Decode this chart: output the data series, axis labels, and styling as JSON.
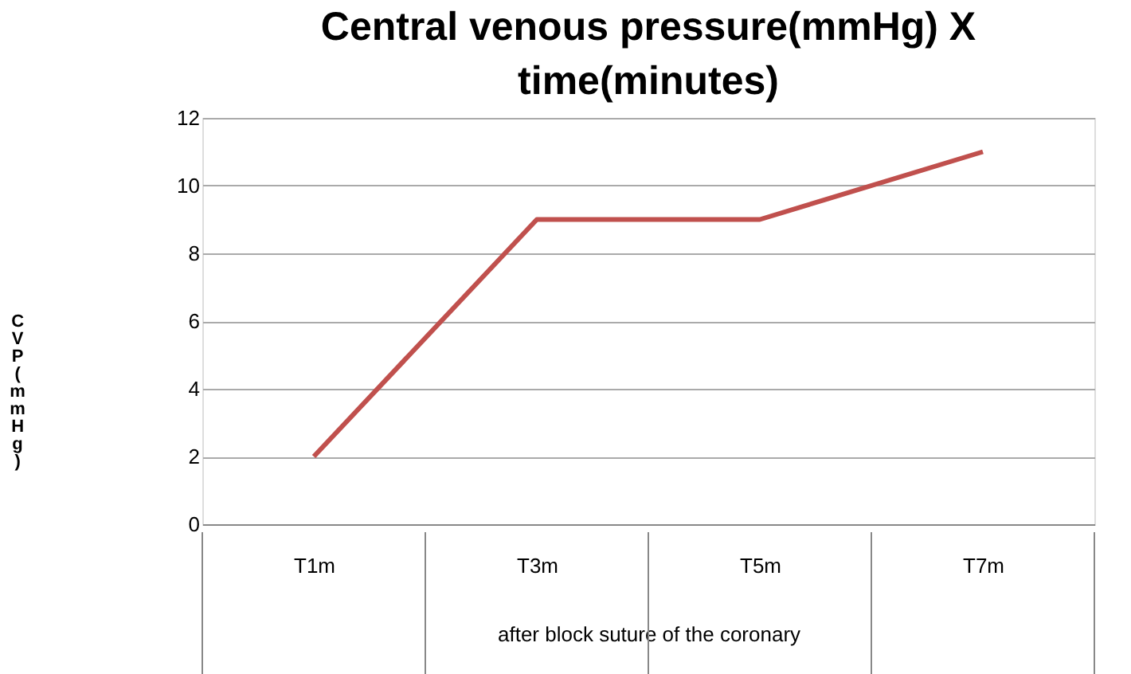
{
  "chart_data": {
    "type": "line",
    "title": "Central venous pressure(mmHg) X time(minutes)",
    "xlabel": "after block suture of the coronary",
    "ylabel": "CVP(mmHg)",
    "categories": [
      "T1m",
      "T3m",
      "T5m",
      "T7m"
    ],
    "series": [
      {
        "color": "#c0504d",
        "values": [
          2,
          9,
          9,
          11
        ]
      }
    ],
    "ylim": [
      0,
      12
    ],
    "yticks": [
      0,
      2,
      4,
      6,
      8,
      10,
      12
    ],
    "grid": "y",
    "marker": "none",
    "line_style": "solid"
  }
}
